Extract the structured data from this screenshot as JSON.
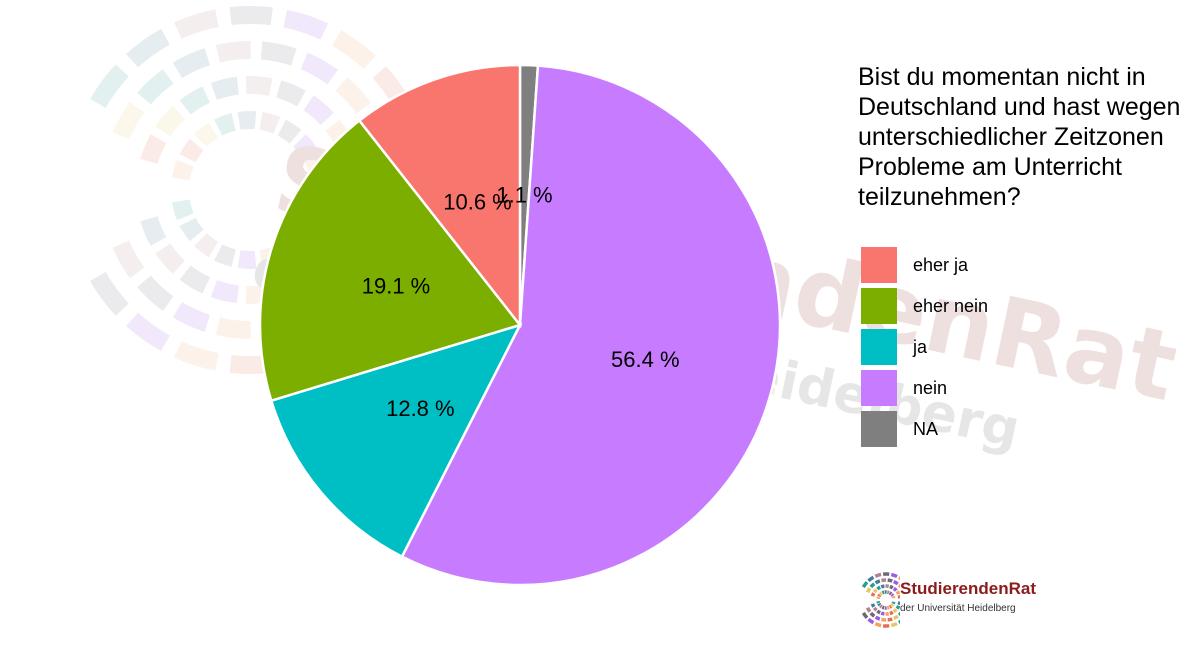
{
  "watermark": {
    "line1": "StudierendenRat",
    "line2": "der Universität Heidelberg"
  },
  "logo": {
    "title_part1": "Studierenden",
    "title_part2": "Rat",
    "subtitle": "der Universität Heidelberg"
  },
  "chart_data": {
    "type": "pie",
    "title": "",
    "legend_title": "Bist du momentan nicht in Deutschland und hast wegen unterschiedlicher Zeitzonen Probleme am Unterricht teilzunehmen?",
    "legend_position": "right",
    "slices": [
      {
        "label": "NA",
        "value": 1.1,
        "display": "1.1 %",
        "color": "#7f7f7f"
      },
      {
        "label": "nein",
        "value": 56.4,
        "display": "56.4 %",
        "color": "#c77cff"
      },
      {
        "label": "ja",
        "value": 12.8,
        "display": "12.8 %",
        "color": "#00bfc4"
      },
      {
        "label": "eher nein",
        "value": 19.1,
        "display": "19.1 %",
        "color": "#7cae00"
      },
      {
        "label": "eher ja",
        "value": 10.6,
        "display": "10.6 %",
        "color": "#f8766d"
      }
    ],
    "legend_order": [
      "eher ja",
      "eher nein",
      "ja",
      "nein",
      "NA"
    ]
  }
}
